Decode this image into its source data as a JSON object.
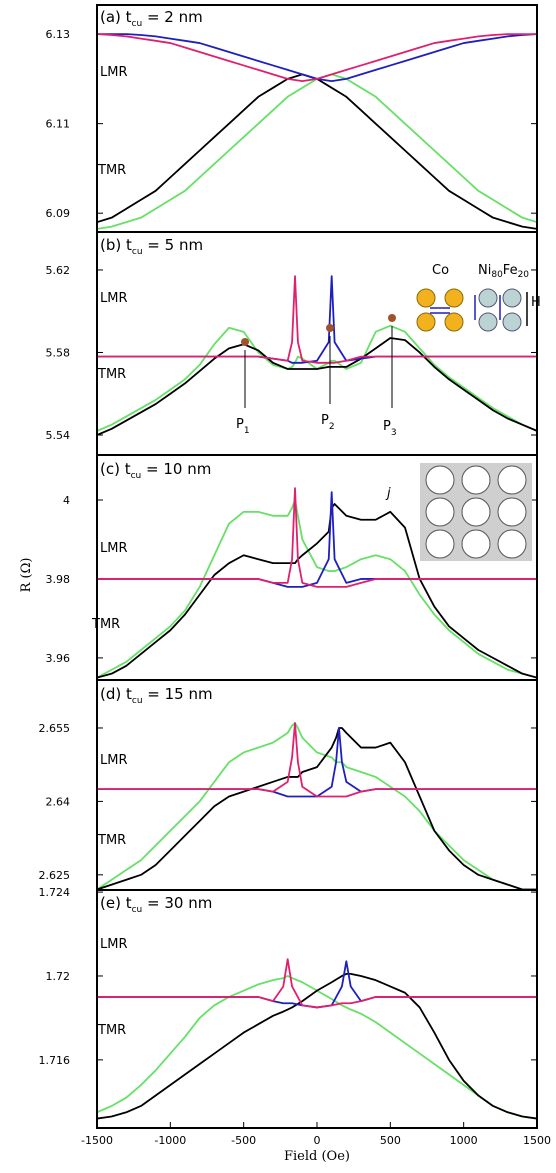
{
  "chart_data": [
    {
      "type": "line",
      "title": [
        "(a) t",
        "cu",
        " = 2 nm"
      ],
      "annotations": [
        "LMR",
        "TMR"
      ],
      "xlim": [
        -1500,
        1500
      ],
      "ylim": [
        6.0858,
        6.1365
      ],
      "yticks": [
        6.09,
        6.11,
        6.13
      ],
      "x": [
        -1500,
        -1400,
        -1300,
        -1200,
        -1100,
        -1000,
        -900,
        -800,
        -700,
        -600,
        -500,
        -400,
        -300,
        -200,
        -100,
        0,
        100,
        200,
        300,
        400,
        500,
        600,
        700,
        800,
        900,
        1000,
        1100,
        1200,
        1300,
        1400,
        1500
      ],
      "series": [
        {
          "color": "#66e066",
          "values": [
            6.0865,
            6.087,
            6.088,
            6.089,
            6.091,
            6.093,
            6.095,
            6.098,
            6.101,
            6.104,
            6.107,
            6.11,
            6.113,
            6.116,
            6.118,
            6.12,
            6.121,
            6.12,
            6.118,
            6.116,
            6.113,
            6.11,
            6.107,
            6.104,
            6.101,
            6.098,
            6.095,
            6.093,
            6.091,
            6.089,
            6.088
          ]
        },
        {
          "color": "#000000",
          "values": [
            6.088,
            6.089,
            6.091,
            6.093,
            6.095,
            6.098,
            6.101,
            6.104,
            6.107,
            6.11,
            6.113,
            6.116,
            6.118,
            6.12,
            6.121,
            6.12,
            6.118,
            6.116,
            6.113,
            6.11,
            6.107,
            6.104,
            6.101,
            6.098,
            6.095,
            6.093,
            6.091,
            6.089,
            6.088,
            6.087,
            6.0865
          ]
        },
        {
          "color": "#1f1fbf",
          "values": [
            6.13,
            6.13,
            6.13,
            6.1298,
            6.1295,
            6.129,
            6.1285,
            6.128,
            6.127,
            6.126,
            6.125,
            6.124,
            6.123,
            6.122,
            6.121,
            6.12,
            6.1195,
            6.12,
            6.121,
            6.122,
            6.123,
            6.124,
            6.125,
            6.126,
            6.127,
            6.128,
            6.1285,
            6.129,
            6.1295,
            6.1298,
            6.13
          ]
        },
        {
          "color": "#e0206e",
          "values": [
            6.13,
            6.1298,
            6.1295,
            6.129,
            6.1285,
            6.128,
            6.127,
            6.126,
            6.125,
            6.124,
            6.123,
            6.122,
            6.121,
            6.12,
            6.1195,
            6.12,
            6.121,
            6.122,
            6.123,
            6.124,
            6.125,
            6.126,
            6.127,
            6.128,
            6.1285,
            6.129,
            6.1295,
            6.1298,
            6.13,
            6.13,
            6.13
          ]
        }
      ]
    },
    {
      "type": "line",
      "title": [
        "(b) t",
        "cu",
        " = 5 nm"
      ],
      "annotations": [
        "LMR",
        "TMR",
        "P",
        "1",
        "P",
        "2",
        "P",
        "3",
        "Co",
        "Ni",
        "80",
        "Fe",
        "20",
        "H"
      ],
      "xlim": [
        -1500,
        1500
      ],
      "ylim": [
        5.5303,
        5.6384
      ],
      "yticks": [
        5.54,
        5.58,
        5.62
      ],
      "x": [
        -1500,
        -1400,
        -1300,
        -1200,
        -1100,
        -1000,
        -900,
        -800,
        -700,
        -600,
        -500,
        -400,
        -300,
        -200,
        -170,
        -150,
        -130,
        -100,
        0,
        80,
        100,
        120,
        200,
        300,
        400,
        500,
        600,
        700,
        800,
        900,
        1000,
        1100,
        1200,
        1300,
        1400,
        1500
      ],
      "series": [
        {
          "color": "#66e066",
          "values": [
            5.542,
            5.545,
            5.549,
            5.553,
            5.557,
            5.562,
            5.567,
            5.574,
            5.584,
            5.592,
            5.59,
            5.58,
            5.574,
            5.572,
            5.573,
            5.575,
            5.578,
            5.577,
            5.572,
            5.575,
            5.576,
            5.576,
            5.572,
            5.575,
            5.59,
            5.593,
            5.59,
            5.582,
            5.574,
            5.568,
            5.563,
            5.558,
            5.553,
            5.549,
            5.545,
            5.542
          ]
        },
        {
          "color": "#000000",
          "values": [
            5.54,
            5.543,
            5.547,
            5.551,
            5.555,
            5.56,
            5.565,
            5.571,
            5.577,
            5.582,
            5.584,
            5.581,
            5.575,
            5.572,
            5.572,
            5.572,
            5.572,
            5.572,
            5.572,
            5.573,
            5.573,
            5.573,
            5.573,
            5.577,
            5.582,
            5.587,
            5.586,
            5.58,
            5.573,
            5.567,
            5.562,
            5.557,
            5.552,
            5.548,
            5.545,
            5.542
          ]
        },
        {
          "color": "#1f1fbf",
          "values": [
            5.578,
            5.578,
            5.578,
            5.578,
            5.578,
            5.578,
            5.578,
            5.578,
            5.578,
            5.578,
            5.578,
            5.578,
            5.577,
            5.576,
            5.575,
            5.575,
            5.575,
            5.575,
            5.576,
            5.585,
            5.617,
            5.585,
            5.576,
            5.577,
            5.578,
            5.578,
            5.578,
            5.578,
            5.578,
            5.578,
            5.578,
            5.578,
            5.578,
            5.578,
            5.578,
            5.578
          ]
        },
        {
          "color": "#e0206e",
          "values": [
            5.578,
            5.578,
            5.578,
            5.578,
            5.578,
            5.578,
            5.578,
            5.578,
            5.578,
            5.578,
            5.578,
            5.578,
            5.577,
            5.576,
            5.585,
            5.617,
            5.585,
            5.576,
            5.575,
            5.575,
            5.575,
            5.575,
            5.576,
            5.578,
            5.578,
            5.578,
            5.578,
            5.578,
            5.578,
            5.578,
            5.578,
            5.578,
            5.578,
            5.578,
            5.578,
            5.578
          ]
        }
      ]
    },
    {
      "type": "line",
      "title": [
        "(c) t",
        "cu",
        " = 10 nm"
      ],
      "annotations": [
        "LMR",
        "TMR",
        "j"
      ],
      "ylabel": "R (Ω)",
      "xlim": [
        -1500,
        1500
      ],
      "ylim": [
        3.9544,
        4.0114
      ],
      "yticks": [
        3.96,
        3.98,
        4
      ],
      "x": [
        -1500,
        -1400,
        -1300,
        -1200,
        -1100,
        -1000,
        -900,
        -800,
        -700,
        -600,
        -500,
        -400,
        -300,
        -200,
        -170,
        -150,
        -130,
        -100,
        0,
        80,
        100,
        120,
        200,
        300,
        400,
        500,
        600,
        700,
        800,
        900,
        1000,
        1100,
        1200,
        1300,
        1400,
        1500
      ],
      "series": [
        {
          "color": "#66e066",
          "values": [
            3.955,
            3.957,
            3.959,
            3.962,
            3.965,
            3.968,
            3.972,
            3.978,
            3.986,
            3.994,
            3.997,
            3.997,
            3.996,
            3.996,
            3.998,
            4.0,
            3.996,
            3.99,
            3.983,
            3.982,
            3.982,
            3.982,
            3.983,
            3.985,
            3.986,
            3.985,
            3.982,
            3.976,
            3.971,
            3.967,
            3.964,
            3.961,
            3.959,
            3.957,
            3.956,
            3.955
          ]
        },
        {
          "color": "#000000",
          "values": [
            3.955,
            3.956,
            3.958,
            3.961,
            3.964,
            3.967,
            3.971,
            3.976,
            3.981,
            3.984,
            3.986,
            3.985,
            3.984,
            3.984,
            3.984,
            3.984,
            3.985,
            3.986,
            3.989,
            3.992,
            3.998,
            3.999,
            3.996,
            3.995,
            3.995,
            3.997,
            3.993,
            3.98,
            3.973,
            3.968,
            3.965,
            3.962,
            3.96,
            3.958,
            3.956,
            3.955
          ]
        },
        {
          "color": "#1f1fbf",
          "values": [
            3.98,
            3.98,
            3.98,
            3.98,
            3.98,
            3.98,
            3.98,
            3.98,
            3.98,
            3.98,
            3.98,
            3.98,
            3.979,
            3.978,
            3.978,
            3.978,
            3.978,
            3.978,
            3.979,
            3.985,
            4.002,
            3.985,
            3.979,
            3.98,
            3.98,
            3.98,
            3.98,
            3.98,
            3.98,
            3.98,
            3.98,
            3.98,
            3.98,
            3.98,
            3.98,
            3.98
          ]
        },
        {
          "color": "#e0206e",
          "values": [
            3.98,
            3.98,
            3.98,
            3.98,
            3.98,
            3.98,
            3.98,
            3.98,
            3.98,
            3.98,
            3.98,
            3.98,
            3.979,
            3.979,
            3.985,
            4.003,
            3.985,
            3.979,
            3.978,
            3.978,
            3.978,
            3.978,
            3.978,
            3.979,
            3.98,
            3.98,
            3.98,
            3.98,
            3.98,
            3.98,
            3.98,
            3.98,
            3.98,
            3.98,
            3.98,
            3.98
          ]
        }
      ]
    },
    {
      "type": "line",
      "title": [
        "(d) t",
        "cu",
        " = 15 nm"
      ],
      "annotations": [
        "LMR",
        "TMR"
      ],
      "xlim": [
        -1500,
        1500
      ],
      "ylim": [
        2.6219,
        2.6648
      ],
      "yticks": [
        2.625,
        2.64,
        2.655
      ],
      "x": [
        -1500,
        -1400,
        -1300,
        -1200,
        -1100,
        -1000,
        -900,
        -800,
        -700,
        -600,
        -500,
        -400,
        -300,
        -200,
        -170,
        -150,
        -130,
        -100,
        0,
        100,
        130,
        150,
        170,
        200,
        300,
        400,
        500,
        600,
        700,
        800,
        900,
        1000,
        1100,
        1200,
        1300,
        1400,
        1500
      ],
      "series": [
        {
          "color": "#66e066",
          "values": [
            2.622,
            2.624,
            2.626,
            2.628,
            2.631,
            2.634,
            2.637,
            2.64,
            2.644,
            2.648,
            2.65,
            2.651,
            2.652,
            2.654,
            2.6555,
            2.656,
            2.655,
            2.653,
            2.65,
            2.649,
            2.648,
            2.648,
            2.648,
            2.647,
            2.646,
            2.645,
            2.643,
            2.641,
            2.638,
            2.634,
            2.631,
            2.628,
            2.626,
            2.624,
            2.623,
            2.622,
            2.622
          ]
        },
        {
          "color": "#000000",
          "values": [
            2.622,
            2.623,
            2.624,
            2.625,
            2.627,
            2.63,
            2.633,
            2.636,
            2.639,
            2.641,
            2.642,
            2.643,
            2.644,
            2.645,
            2.645,
            2.645,
            2.645,
            2.646,
            2.647,
            2.651,
            2.653,
            2.655,
            2.655,
            2.654,
            2.651,
            2.651,
            2.652,
            2.648,
            2.641,
            2.634,
            2.63,
            2.627,
            2.625,
            2.624,
            2.623,
            2.622,
            2.622
          ]
        },
        {
          "color": "#1f1fbf",
          "values": [
            2.6425,
            2.6425,
            2.6425,
            2.6425,
            2.6425,
            2.6425,
            2.6425,
            2.6425,
            2.6425,
            2.6425,
            2.6425,
            2.6425,
            2.642,
            2.641,
            2.641,
            2.641,
            2.641,
            2.641,
            2.641,
            2.643,
            2.648,
            2.655,
            2.648,
            2.644,
            2.642,
            2.6425,
            2.6425,
            2.6425,
            2.6425,
            2.6425,
            2.6425,
            2.6425,
            2.6425,
            2.6425,
            2.6425,
            2.6425,
            2.6425
          ]
        },
        {
          "color": "#e0206e",
          "values": [
            2.6425,
            2.6425,
            2.6425,
            2.6425,
            2.6425,
            2.6425,
            2.6425,
            2.6425,
            2.6425,
            2.6425,
            2.6425,
            2.6425,
            2.642,
            2.644,
            2.649,
            2.656,
            2.648,
            2.643,
            2.641,
            2.641,
            2.641,
            2.641,
            2.641,
            2.641,
            2.642,
            2.6425,
            2.6425,
            2.6425,
            2.6425,
            2.6425,
            2.6425,
            2.6425,
            2.6425,
            2.6425,
            2.6425,
            2.6425,
            2.6425
          ]
        }
      ]
    },
    {
      "type": "line",
      "title": [
        "(e) t",
        "cu",
        " = 30 nm"
      ],
      "annotations": [
        "LMR",
        "TMR"
      ],
      "xlabel": "Field (Oe)",
      "xlim": [
        -1500,
        1500
      ],
      "xticks": [
        -1500,
        -1000,
        -500,
        0,
        500,
        1000,
        1500
      ],
      "ylim": [
        1.71275,
        1.7241
      ],
      "yticks": [
        1.716,
        1.72,
        1.724
      ],
      "x": [
        -1500,
        -1400,
        -1300,
        -1200,
        -1100,
        -1000,
        -900,
        -800,
        -700,
        -600,
        -500,
        -400,
        -300,
        -230,
        -200,
        -170,
        -100,
        0,
        100,
        170,
        200,
        230,
        300,
        400,
        500,
        600,
        700,
        800,
        900,
        1000,
        1100,
        1200,
        1300,
        1400,
        1500
      ],
      "series": [
        {
          "color": "#66e066",
          "values": [
            1.7135,
            1.7138,
            1.7142,
            1.7148,
            1.7155,
            1.7163,
            1.7171,
            1.718,
            1.7186,
            1.719,
            1.7193,
            1.7196,
            1.7198,
            1.7199,
            1.72,
            1.7199,
            1.7197,
            1.7193,
            1.7189,
            1.7186,
            1.7185,
            1.7184,
            1.7182,
            1.7178,
            1.7173,
            1.7168,
            1.7163,
            1.7158,
            1.7153,
            1.7148,
            1.7143,
            1.7138,
            1.7135,
            1.7133,
            1.7132
          ]
        },
        {
          "color": "#000000",
          "values": [
            1.7132,
            1.7133,
            1.7135,
            1.7138,
            1.7143,
            1.7148,
            1.7153,
            1.7158,
            1.7163,
            1.7168,
            1.7173,
            1.7177,
            1.7181,
            1.7183,
            1.7184,
            1.7185,
            1.7188,
            1.7193,
            1.7197,
            1.72,
            1.7201,
            1.7201,
            1.72,
            1.7198,
            1.7195,
            1.7192,
            1.7185,
            1.7173,
            1.716,
            1.715,
            1.7143,
            1.7138,
            1.7135,
            1.7133,
            1.7132
          ]
        },
        {
          "color": "#1f1fbf",
          "values": [
            1.719,
            1.719,
            1.719,
            1.719,
            1.719,
            1.719,
            1.719,
            1.719,
            1.719,
            1.719,
            1.719,
            1.719,
            1.7188,
            1.7187,
            1.7187,
            1.7187,
            1.7186,
            1.7185,
            1.7186,
            1.7195,
            1.7207,
            1.7195,
            1.7188,
            1.719,
            1.719,
            1.719,
            1.719,
            1.719,
            1.719,
            1.719,
            1.719,
            1.719,
            1.719,
            1.719,
            1.719
          ]
        },
        {
          "color": "#e0206e",
          "values": [
            1.719,
            1.719,
            1.719,
            1.719,
            1.719,
            1.719,
            1.719,
            1.719,
            1.719,
            1.719,
            1.719,
            1.719,
            1.7188,
            1.7195,
            1.7208,
            1.7195,
            1.7186,
            1.7185,
            1.7186,
            1.7187,
            1.7187,
            1.7187,
            1.7188,
            1.719,
            1.719,
            1.719,
            1.719,
            1.719,
            1.719,
            1.719,
            1.719,
            1.719,
            1.719,
            1.719,
            1.719
          ]
        }
      ]
    }
  ]
}
